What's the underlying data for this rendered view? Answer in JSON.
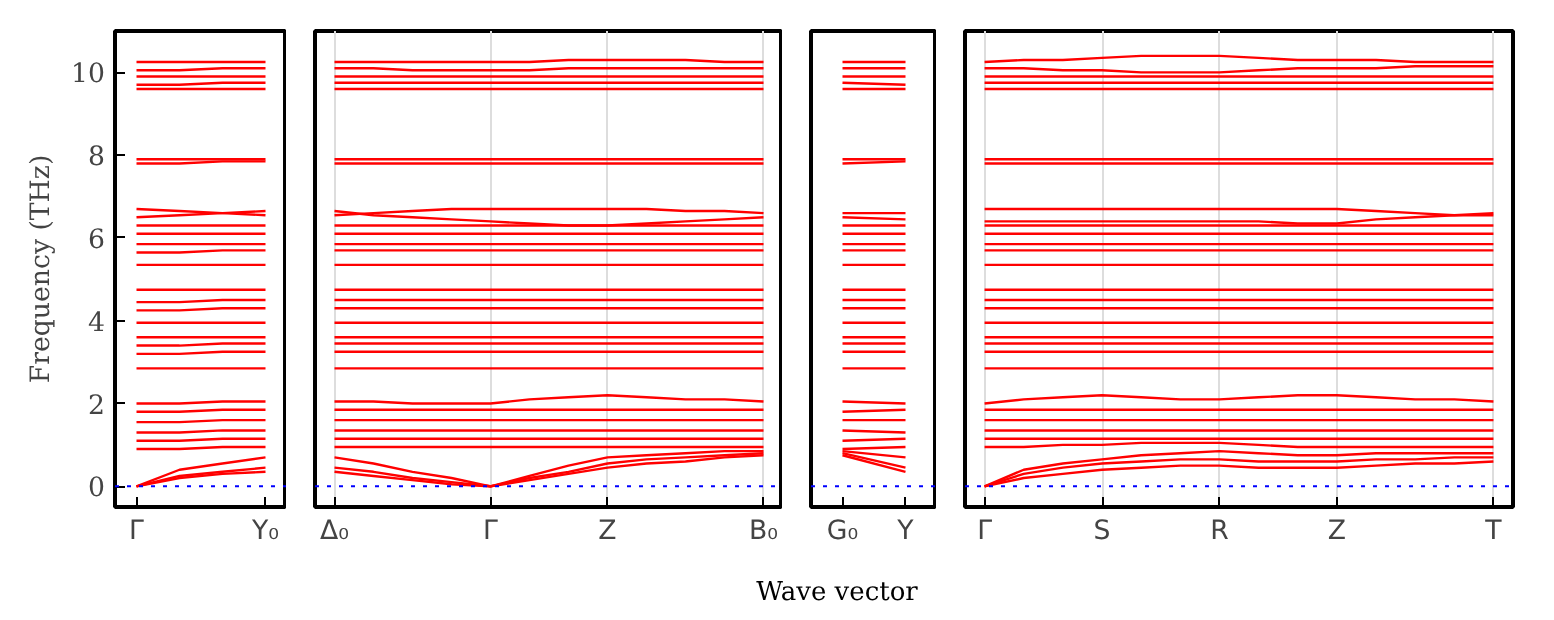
{
  "chart_data": [
    {
      "type": "line",
      "ylabel": "Frequency (THz)",
      "categories": [
        "Γ",
        null,
        null,
        "Y₀"
      ],
      "ylim": [
        -0.5,
        11
      ],
      "yticks": [
        0,
        2,
        4,
        6,
        8,
        10
      ],
      "line_style": "solid",
      "ref_lines": [
        {
          "axis": "y",
          "value": 0,
          "label": null,
          "color": "#0000ff",
          "line_style": "dotted"
        }
      ],
      "series": [
        {
          "color": "#ff0000",
          "values": [
            10.25,
            10.25,
            10.25,
            10.25
          ]
        },
        {
          "color": "#ff0000",
          "values": [
            10.05,
            10.05,
            10.1,
            10.1
          ]
        },
        {
          "color": "#ff0000",
          "values": [
            9.9,
            9.9,
            9.9,
            9.9
          ]
        },
        {
          "color": "#ff0000",
          "values": [
            9.7,
            9.7,
            9.75,
            9.75
          ]
        },
        {
          "color": "#ff0000",
          "values": [
            9.6,
            9.6,
            9.6,
            9.6
          ]
        },
        {
          "color": "#ff0000",
          "values": [
            7.9,
            7.9,
            7.9,
            7.9
          ]
        },
        {
          "color": "#ff0000",
          "values": [
            7.8,
            7.8,
            7.85,
            7.85
          ]
        },
        {
          "color": "#ff0000",
          "values": [
            6.7,
            6.65,
            6.6,
            6.55
          ]
        },
        {
          "color": "#ff0000",
          "values": [
            6.5,
            6.55,
            6.6,
            6.65
          ]
        },
        {
          "color": "#ff0000",
          "values": [
            6.3,
            6.3,
            6.3,
            6.3
          ]
        },
        {
          "color": "#ff0000",
          "values": [
            6.1,
            6.1,
            6.1,
            6.1
          ]
        },
        {
          "color": "#ff0000",
          "values": [
            5.85,
            5.85,
            5.85,
            5.85
          ]
        },
        {
          "color": "#ff0000",
          "values": [
            5.65,
            5.65,
            5.7,
            5.7
          ]
        },
        {
          "color": "#ff0000",
          "values": [
            5.35,
            5.35,
            5.35,
            5.35
          ]
        },
        {
          "color": "#ff0000",
          "values": [
            4.75,
            4.75,
            4.75,
            4.75
          ]
        },
        {
          "color": "#ff0000",
          "values": [
            4.45,
            4.45,
            4.5,
            4.5
          ]
        },
        {
          "color": "#ff0000",
          "values": [
            4.25,
            4.25,
            4.3,
            4.3
          ]
        },
        {
          "color": "#ff0000",
          "values": [
            3.95,
            3.95,
            3.95,
            3.95
          ]
        },
        {
          "color": "#ff0000",
          "values": [
            3.6,
            3.6,
            3.6,
            3.6
          ]
        },
        {
          "color": "#ff0000",
          "values": [
            3.4,
            3.4,
            3.45,
            3.45
          ]
        },
        {
          "color": "#ff0000",
          "values": [
            3.2,
            3.2,
            3.25,
            3.25
          ]
        },
        {
          "color": "#ff0000",
          "values": [
            2.85,
            2.85,
            2.85,
            2.85
          ]
        },
        {
          "color": "#ff0000",
          "values": [
            2.0,
            2.0,
            2.05,
            2.05
          ]
        },
        {
          "color": "#ff0000",
          "values": [
            1.8,
            1.8,
            1.85,
            1.85
          ]
        },
        {
          "color": "#ff0000",
          "values": [
            1.55,
            1.55,
            1.6,
            1.6
          ]
        },
        {
          "color": "#ff0000",
          "values": [
            1.3,
            1.3,
            1.35,
            1.35
          ]
        },
        {
          "color": "#ff0000",
          "values": [
            1.1,
            1.1,
            1.15,
            1.15
          ]
        },
        {
          "color": "#ff0000",
          "values": [
            0.9,
            0.9,
            0.95,
            0.95
          ]
        },
        {
          "color": "#ff0000",
          "values": [
            0,
            0.2,
            0.3,
            0.35
          ]
        },
        {
          "color": "#ff0000",
          "values": [
            0,
            0.25,
            0.35,
            0.45
          ]
        },
        {
          "color": "#ff0000",
          "values": [
            0,
            0.4,
            0.55,
            0.7
          ]
        }
      ]
    },
    {
      "type": "line",
      "categories": [
        "Δ₀",
        null,
        null,
        null,
        "Γ",
        null,
        null,
        "Z",
        null,
        null,
        null,
        "B₀"
      ],
      "ylim": [
        -0.5,
        11
      ],
      "yticks": [
        0,
        2,
        4,
        6,
        8,
        10
      ],
      "tick_labels": "x",
      "grid": "x",
      "line_style": "solid",
      "ref_lines": [
        {
          "axis": "y",
          "value": 0,
          "label": null,
          "color": "#0000ff",
          "line_style": "dotted"
        }
      ],
      "series": [
        {
          "color": "#ff0000",
          "values": [
            10.25,
            10.25,
            10.25,
            10.25,
            10.25,
            10.25,
            10.3,
            10.3,
            10.3,
            10.3,
            10.25,
            10.25
          ]
        },
        {
          "color": "#ff0000",
          "values": [
            10.1,
            10.1,
            10.05,
            10.05,
            10.05,
            10.05,
            10.1,
            10.1,
            10.1,
            10.1,
            10.1,
            10.1
          ]
        },
        {
          "color": "#ff0000",
          "values": [
            9.9,
            9.9,
            9.9,
            9.9,
            9.9,
            9.9,
            9.9,
            9.9,
            9.9,
            9.9,
            9.9,
            9.9
          ]
        },
        {
          "color": "#ff0000",
          "values": [
            9.75,
            9.75,
            9.75,
            9.75,
            9.75,
            9.75,
            9.75,
            9.75,
            9.75,
            9.75,
            9.75,
            9.75
          ]
        },
        {
          "color": "#ff0000",
          "values": [
            9.6,
            9.6,
            9.6,
            9.6,
            9.6,
            9.6,
            9.6,
            9.6,
            9.6,
            9.6,
            9.6,
            9.6
          ]
        },
        {
          "color": "#ff0000",
          "values": [
            7.9,
            7.9,
            7.9,
            7.9,
            7.9,
            7.9,
            7.9,
            7.9,
            7.9,
            7.9,
            7.9,
            7.9
          ]
        },
        {
          "color": "#ff0000",
          "values": [
            7.8,
            7.8,
            7.8,
            7.8,
            7.8,
            7.8,
            7.8,
            7.8,
            7.8,
            7.8,
            7.8,
            7.8
          ]
        },
        {
          "color": "#ff0000",
          "values": [
            6.55,
            6.6,
            6.65,
            6.7,
            6.7,
            6.7,
            6.7,
            6.7,
            6.7,
            6.65,
            6.65,
            6.6
          ]
        },
        {
          "color": "#ff0000",
          "values": [
            6.65,
            6.55,
            6.5,
            6.45,
            6.4,
            6.35,
            6.3,
            6.3,
            6.35,
            6.4,
            6.45,
            6.5
          ]
        },
        {
          "color": "#ff0000",
          "values": [
            6.3,
            6.3,
            6.3,
            6.3,
            6.3,
            6.3,
            6.3,
            6.3,
            6.3,
            6.3,
            6.3,
            6.3
          ]
        },
        {
          "color": "#ff0000",
          "values": [
            6.1,
            6.1,
            6.1,
            6.1,
            6.1,
            6.1,
            6.1,
            6.1,
            6.1,
            6.1,
            6.1,
            6.1
          ]
        },
        {
          "color": "#ff0000",
          "values": [
            5.85,
            5.85,
            5.85,
            5.85,
            5.85,
            5.85,
            5.85,
            5.85,
            5.85,
            5.85,
            5.85,
            5.85
          ]
        },
        {
          "color": "#ff0000",
          "values": [
            5.7,
            5.7,
            5.7,
            5.7,
            5.7,
            5.7,
            5.7,
            5.7,
            5.7,
            5.7,
            5.7,
            5.7
          ]
        },
        {
          "color": "#ff0000",
          "values": [
            5.35,
            5.35,
            5.35,
            5.35,
            5.35,
            5.35,
            5.35,
            5.35,
            5.35,
            5.35,
            5.35,
            5.35
          ]
        },
        {
          "color": "#ff0000",
          "values": [
            4.75,
            4.75,
            4.75,
            4.75,
            4.75,
            4.75,
            4.75,
            4.75,
            4.75,
            4.75,
            4.75,
            4.75
          ]
        },
        {
          "color": "#ff0000",
          "values": [
            4.5,
            4.5,
            4.5,
            4.5,
            4.5,
            4.5,
            4.5,
            4.5,
            4.5,
            4.5,
            4.5,
            4.5
          ]
        },
        {
          "color": "#ff0000",
          "values": [
            4.3,
            4.3,
            4.3,
            4.3,
            4.3,
            4.3,
            4.3,
            4.3,
            4.3,
            4.3,
            4.3,
            4.3
          ]
        },
        {
          "color": "#ff0000",
          "values": [
            3.95,
            3.95,
            3.95,
            3.95,
            3.95,
            3.95,
            3.95,
            3.95,
            3.95,
            3.95,
            3.95,
            3.95
          ]
        },
        {
          "color": "#ff0000",
          "values": [
            3.6,
            3.6,
            3.6,
            3.6,
            3.6,
            3.6,
            3.6,
            3.6,
            3.6,
            3.6,
            3.6,
            3.6
          ]
        },
        {
          "color": "#ff0000",
          "values": [
            3.45,
            3.45,
            3.45,
            3.45,
            3.45,
            3.45,
            3.45,
            3.45,
            3.45,
            3.45,
            3.45,
            3.45
          ]
        },
        {
          "color": "#ff0000",
          "values": [
            3.25,
            3.25,
            3.25,
            3.25,
            3.25,
            3.25,
            3.25,
            3.25,
            3.25,
            3.25,
            3.25,
            3.25
          ]
        },
        {
          "color": "#ff0000",
          "values": [
            2.85,
            2.85,
            2.85,
            2.85,
            2.85,
            2.85,
            2.85,
            2.85,
            2.85,
            2.85,
            2.85,
            2.85
          ]
        },
        {
          "color": "#ff0000",
          "values": [
            2.05,
            2.05,
            2.0,
            2.0,
            2.0,
            2.1,
            2.15,
            2.2,
            2.15,
            2.1,
            2.1,
            2.05
          ]
        },
        {
          "color": "#ff0000",
          "values": [
            1.85,
            1.85,
            1.85,
            1.85,
            1.85,
            1.85,
            1.85,
            1.85,
            1.85,
            1.85,
            1.85,
            1.85
          ]
        },
        {
          "color": "#ff0000",
          "values": [
            1.6,
            1.6,
            1.6,
            1.6,
            1.6,
            1.6,
            1.6,
            1.6,
            1.6,
            1.6,
            1.6,
            1.6
          ]
        },
        {
          "color": "#ff0000",
          "values": [
            1.35,
            1.35,
            1.35,
            1.35,
            1.35,
            1.35,
            1.35,
            1.35,
            1.35,
            1.35,
            1.35,
            1.35
          ]
        },
        {
          "color": "#ff0000",
          "values": [
            1.15,
            1.15,
            1.15,
            1.15,
            1.15,
            1.15,
            1.15,
            1.15,
            1.15,
            1.15,
            1.15,
            1.15
          ]
        },
        {
          "color": "#ff0000",
          "values": [
            0.95,
            0.95,
            0.95,
            0.95,
            0.95,
            0.95,
            0.95,
            0.95,
            0.95,
            0.95,
            0.95,
            0.95
          ]
        },
        {
          "color": "#ff0000",
          "values": [
            0.35,
            0.25,
            0.15,
            0.05,
            0,
            0.15,
            0.3,
            0.45,
            0.55,
            0.6,
            0.7,
            0.75
          ]
        },
        {
          "color": "#ff0000",
          "values": [
            0.45,
            0.35,
            0.2,
            0.1,
            0,
            0.2,
            0.35,
            0.55,
            0.65,
            0.7,
            0.75,
            0.8
          ]
        },
        {
          "color": "#ff0000",
          "values": [
            0.7,
            0.55,
            0.35,
            0.2,
            0,
            0.25,
            0.5,
            0.7,
            0.75,
            0.8,
            0.85,
            0.85
          ]
        }
      ]
    },
    {
      "type": "line",
      "xlabel": "Wave vector",
      "categories": [
        "G₀",
        "Y"
      ],
      "ylim": [
        -0.5,
        11
      ],
      "yticks": [
        0,
        2,
        4,
        6,
        8,
        10
      ],
      "tick_labels": "x",
      "line_style": "solid",
      "ref_lines": [
        {
          "axis": "y",
          "value": 0,
          "label": null,
          "color": "#0000ff",
          "line_style": "dotted"
        }
      ],
      "series": [
        {
          "color": "#ff0000",
          "values": [
            10.25,
            10.25
          ]
        },
        {
          "color": "#ff0000",
          "values": [
            10.1,
            10.1
          ]
        },
        {
          "color": "#ff0000",
          "values": [
            9.9,
            9.9
          ]
        },
        {
          "color": "#ff0000",
          "values": [
            9.75,
            9.7
          ]
        },
        {
          "color": "#ff0000",
          "values": [
            9.6,
            9.6
          ]
        },
        {
          "color": "#ff0000",
          "values": [
            7.9,
            7.9
          ]
        },
        {
          "color": "#ff0000",
          "values": [
            7.8,
            7.85
          ]
        },
        {
          "color": "#ff0000",
          "values": [
            6.6,
            6.6
          ]
        },
        {
          "color": "#ff0000",
          "values": [
            6.5,
            6.45
          ]
        },
        {
          "color": "#ff0000",
          "values": [
            6.3,
            6.3
          ]
        },
        {
          "color": "#ff0000",
          "values": [
            6.1,
            6.1
          ]
        },
        {
          "color": "#ff0000",
          "values": [
            5.85,
            5.85
          ]
        },
        {
          "color": "#ff0000",
          "values": [
            5.7,
            5.7
          ]
        },
        {
          "color": "#ff0000",
          "values": [
            5.35,
            5.35
          ]
        },
        {
          "color": "#ff0000",
          "values": [
            4.75,
            4.75
          ]
        },
        {
          "color": "#ff0000",
          "values": [
            4.5,
            4.5
          ]
        },
        {
          "color": "#ff0000",
          "values": [
            4.3,
            4.3
          ]
        },
        {
          "color": "#ff0000",
          "values": [
            3.95,
            3.95
          ]
        },
        {
          "color": "#ff0000",
          "values": [
            3.6,
            3.6
          ]
        },
        {
          "color": "#ff0000",
          "values": [
            3.45,
            3.45
          ]
        },
        {
          "color": "#ff0000",
          "values": [
            3.25,
            3.25
          ]
        },
        {
          "color": "#ff0000",
          "values": [
            2.85,
            2.85
          ]
        },
        {
          "color": "#ff0000",
          "values": [
            2.05,
            2.0
          ]
        },
        {
          "color": "#ff0000",
          "values": [
            1.8,
            1.85
          ]
        },
        {
          "color": "#ff0000",
          "values": [
            1.6,
            1.6
          ]
        },
        {
          "color": "#ff0000",
          "values": [
            1.35,
            1.3
          ]
        },
        {
          "color": "#ff0000",
          "values": [
            1.1,
            1.15
          ]
        },
        {
          "color": "#ff0000",
          "values": [
            0.9,
            0.95
          ]
        },
        {
          "color": "#ff0000",
          "values": [
            0.75,
            0.35
          ]
        },
        {
          "color": "#ff0000",
          "values": [
            0.8,
            0.45
          ]
        },
        {
          "color": "#ff0000",
          "values": [
            0.85,
            0.7
          ]
        }
      ]
    },
    {
      "type": "line",
      "categories": [
        "Γ",
        null,
        null,
        "S",
        null,
        null,
        "R",
        null,
        null,
        "Z",
        null,
        null,
        null,
        "T"
      ],
      "ylim": [
        -0.5,
        11
      ],
      "yticks": [
        0,
        2,
        4,
        6,
        8,
        10
      ],
      "tick_labels": "x",
      "grid": "x",
      "line_style": "solid",
      "ref_lines": [
        {
          "axis": "y",
          "value": 0,
          "label": null,
          "color": "#0000ff",
          "line_style": "dotted"
        }
      ],
      "series": [
        {
          "color": "#ff0000",
          "values": [
            10.25,
            10.3,
            10.3,
            10.35,
            10.4,
            10.4,
            10.4,
            10.35,
            10.3,
            10.3,
            10.3,
            10.25,
            10.25,
            10.25
          ]
        },
        {
          "color": "#ff0000",
          "values": [
            10.1,
            10.1,
            10.05,
            10.05,
            10.0,
            10.0,
            10.0,
            10.05,
            10.1,
            10.1,
            10.1,
            10.15,
            10.15,
            10.15
          ]
        },
        {
          "color": "#ff0000",
          "values": [
            9.9,
            9.9,
            9.9,
            9.9,
            9.9,
            9.9,
            9.9,
            9.9,
            9.9,
            9.9,
            9.9,
            9.9,
            9.9,
            9.9
          ]
        },
        {
          "color": "#ff0000",
          "values": [
            9.75,
            9.75,
            9.75,
            9.75,
            9.75,
            9.75,
            9.75,
            9.75,
            9.75,
            9.75,
            9.75,
            9.75,
            9.75,
            9.75
          ]
        },
        {
          "color": "#ff0000",
          "values": [
            9.6,
            9.6,
            9.6,
            9.6,
            9.6,
            9.6,
            9.6,
            9.6,
            9.6,
            9.6,
            9.6,
            9.6,
            9.6,
            9.6
          ]
        },
        {
          "color": "#ff0000",
          "values": [
            7.9,
            7.9,
            7.9,
            7.9,
            7.9,
            7.9,
            7.9,
            7.9,
            7.9,
            7.9,
            7.9,
            7.9,
            7.9,
            7.9
          ]
        },
        {
          "color": "#ff0000",
          "values": [
            7.8,
            7.8,
            7.8,
            7.8,
            7.8,
            7.8,
            7.8,
            7.8,
            7.8,
            7.8,
            7.8,
            7.8,
            7.8,
            7.8
          ]
        },
        {
          "color": "#ff0000",
          "values": [
            6.7,
            6.7,
            6.7,
            6.7,
            6.7,
            6.7,
            6.7,
            6.7,
            6.7,
            6.7,
            6.65,
            6.6,
            6.55,
            6.55
          ]
        },
        {
          "color": "#ff0000",
          "values": [
            6.4,
            6.4,
            6.4,
            6.4,
            6.4,
            6.4,
            6.4,
            6.4,
            6.35,
            6.35,
            6.45,
            6.5,
            6.55,
            6.6
          ]
        },
        {
          "color": "#ff0000",
          "values": [
            6.3,
            6.3,
            6.3,
            6.3,
            6.3,
            6.3,
            6.3,
            6.3,
            6.3,
            6.3,
            6.3,
            6.3,
            6.3,
            6.3
          ]
        },
        {
          "color": "#ff0000",
          "values": [
            6.1,
            6.1,
            6.1,
            6.1,
            6.1,
            6.1,
            6.1,
            6.1,
            6.1,
            6.1,
            6.1,
            6.1,
            6.1,
            6.1
          ]
        },
        {
          "color": "#ff0000",
          "values": [
            5.85,
            5.85,
            5.85,
            5.85,
            5.85,
            5.85,
            5.85,
            5.85,
            5.85,
            5.85,
            5.85,
            5.85,
            5.85,
            5.85
          ]
        },
        {
          "color": "#ff0000",
          "values": [
            5.7,
            5.7,
            5.7,
            5.7,
            5.7,
            5.7,
            5.7,
            5.7,
            5.7,
            5.7,
            5.7,
            5.7,
            5.7,
            5.7
          ]
        },
        {
          "color": "#ff0000",
          "values": [
            5.35,
            5.35,
            5.35,
            5.35,
            5.35,
            5.35,
            5.35,
            5.35,
            5.35,
            5.35,
            5.35,
            5.35,
            5.35,
            5.35
          ]
        },
        {
          "color": "#ff0000",
          "values": [
            4.75,
            4.75,
            4.75,
            4.75,
            4.75,
            4.75,
            4.75,
            4.75,
            4.75,
            4.75,
            4.75,
            4.75,
            4.75,
            4.75
          ]
        },
        {
          "color": "#ff0000",
          "values": [
            4.5,
            4.5,
            4.5,
            4.5,
            4.5,
            4.5,
            4.5,
            4.5,
            4.5,
            4.5,
            4.5,
            4.5,
            4.5,
            4.5
          ]
        },
        {
          "color": "#ff0000",
          "values": [
            4.3,
            4.3,
            4.3,
            4.3,
            4.3,
            4.3,
            4.3,
            4.3,
            4.3,
            4.3,
            4.3,
            4.3,
            4.3,
            4.3
          ]
        },
        {
          "color": "#ff0000",
          "values": [
            3.95,
            3.95,
            3.95,
            3.95,
            3.95,
            3.95,
            3.95,
            3.95,
            3.95,
            3.95,
            3.95,
            3.95,
            3.95,
            3.95
          ]
        },
        {
          "color": "#ff0000",
          "values": [
            3.6,
            3.6,
            3.6,
            3.6,
            3.6,
            3.6,
            3.6,
            3.6,
            3.6,
            3.6,
            3.6,
            3.6,
            3.6,
            3.6
          ]
        },
        {
          "color": "#ff0000",
          "values": [
            3.45,
            3.45,
            3.45,
            3.45,
            3.45,
            3.45,
            3.45,
            3.45,
            3.45,
            3.45,
            3.45,
            3.45,
            3.45,
            3.45
          ]
        },
        {
          "color": "#ff0000",
          "values": [
            3.25,
            3.25,
            3.25,
            3.25,
            3.25,
            3.25,
            3.25,
            3.25,
            3.25,
            3.25,
            3.25,
            3.25,
            3.25,
            3.25
          ]
        },
        {
          "color": "#ff0000",
          "values": [
            2.85,
            2.85,
            2.85,
            2.85,
            2.85,
            2.85,
            2.85,
            2.85,
            2.85,
            2.85,
            2.85,
            2.85,
            2.85,
            2.85
          ]
        },
        {
          "color": "#ff0000",
          "values": [
            2.0,
            2.1,
            2.15,
            2.2,
            2.15,
            2.1,
            2.1,
            2.15,
            2.2,
            2.2,
            2.15,
            2.1,
            2.1,
            2.05
          ]
        },
        {
          "color": "#ff0000",
          "values": [
            1.85,
            1.85,
            1.85,
            1.85,
            1.85,
            1.85,
            1.85,
            1.85,
            1.85,
            1.85,
            1.85,
            1.85,
            1.85,
            1.85
          ]
        },
        {
          "color": "#ff0000",
          "values": [
            1.6,
            1.6,
            1.6,
            1.6,
            1.6,
            1.6,
            1.6,
            1.6,
            1.6,
            1.6,
            1.6,
            1.6,
            1.6,
            1.6
          ]
        },
        {
          "color": "#ff0000",
          "values": [
            1.35,
            1.35,
            1.35,
            1.35,
            1.35,
            1.35,
            1.35,
            1.35,
            1.35,
            1.35,
            1.35,
            1.35,
            1.35,
            1.35
          ]
        },
        {
          "color": "#ff0000",
          "values": [
            1.15,
            1.15,
            1.15,
            1.15,
            1.15,
            1.15,
            1.15,
            1.15,
            1.15,
            1.15,
            1.15,
            1.15,
            1.15,
            1.15
          ]
        },
        {
          "color": "#ff0000",
          "values": [
            0.95,
            0.95,
            1.0,
            1.0,
            1.05,
            1.05,
            1.05,
            1.0,
            0.95,
            0.95,
            0.95,
            0.95,
            0.95,
            0.95
          ]
        },
        {
          "color": "#ff0000",
          "values": [
            0,
            0.2,
            0.3,
            0.4,
            0.45,
            0.5,
            0.5,
            0.45,
            0.45,
            0.45,
            0.5,
            0.55,
            0.55,
            0.6
          ]
        },
        {
          "color": "#ff0000",
          "values": [
            0,
            0.3,
            0.45,
            0.55,
            0.6,
            0.65,
            0.65,
            0.6,
            0.6,
            0.6,
            0.65,
            0.65,
            0.7,
            0.7
          ]
        },
        {
          "color": "#ff0000",
          "values": [
            0,
            0.4,
            0.55,
            0.65,
            0.75,
            0.8,
            0.85,
            0.8,
            0.75,
            0.75,
            0.8,
            0.8,
            0.8,
            0.8
          ]
        }
      ]
    }
  ]
}
